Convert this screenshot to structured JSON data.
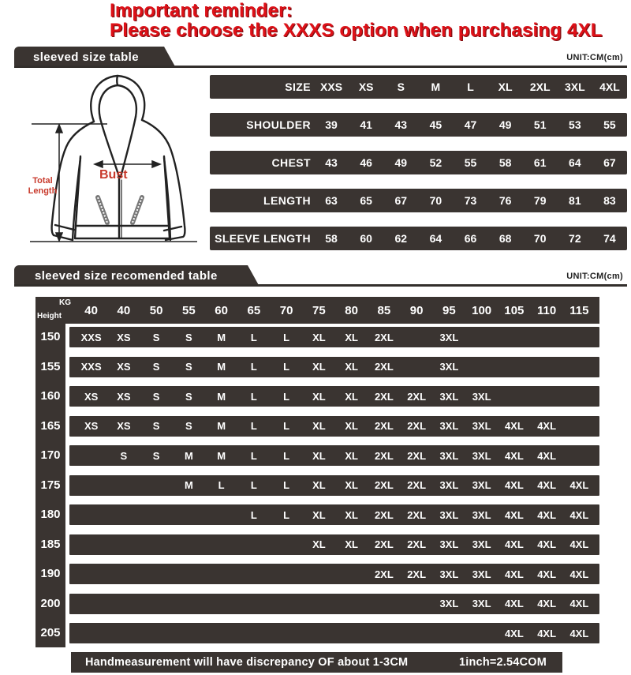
{
  "reminder": {
    "line1": "Important reminder:",
    "line2": "Please choose the XXXS option when purchasing 4XL"
  },
  "section1": {
    "banner": "sleeved size table",
    "unit": "UNIT:CM(cm)",
    "diagram": {
      "total_length": [
        "Total",
        "Length"
      ],
      "bust": "Bust"
    },
    "table": {
      "rows": [
        {
          "label": "SIZE",
          "values": [
            "XXS",
            "XS",
            "S",
            "M",
            "L",
            "XL",
            "2XL",
            "3XL",
            "4XL"
          ]
        },
        {
          "label": "SHOULDER",
          "values": [
            "39",
            "41",
            "43",
            "45",
            "47",
            "49",
            "51",
            "53",
            "55"
          ]
        },
        {
          "label": "CHEST",
          "values": [
            "43",
            "46",
            "49",
            "52",
            "55",
            "58",
            "61",
            "64",
            "67"
          ]
        },
        {
          "label": "LENGTH",
          "values": [
            "63",
            "65",
            "67",
            "70",
            "73",
            "76",
            "79",
            "81",
            "83"
          ]
        },
        {
          "label": "SLEEVE LENGTH",
          "values": [
            "58",
            "60",
            "62",
            "64",
            "66",
            "68",
            "70",
            "72",
            "74"
          ]
        }
      ]
    }
  },
  "section2": {
    "banner": "sleeved size recomended table",
    "unit": "UNIT:CM(cm)",
    "corner": {
      "top": "KG",
      "bottom": "Height"
    },
    "weights": [
      "40",
      "40",
      "50",
      "55",
      "60",
      "65",
      "70",
      "75",
      "80",
      "85",
      "90",
      "95",
      "100",
      "105",
      "110",
      "115"
    ],
    "rows": [
      {
        "height": "150",
        "sizes": [
          "XXS",
          "XS",
          "S",
          "S",
          "M",
          "L",
          "L",
          "XL",
          "XL",
          "2XL",
          "",
          "3XL",
          "",
          "",
          "",
          ""
        ]
      },
      {
        "height": "155",
        "sizes": [
          "XXS",
          "XS",
          "S",
          "S",
          "M",
          "L",
          "L",
          "XL",
          "XL",
          "2XL",
          "",
          "3XL",
          "",
          "",
          "",
          ""
        ]
      },
      {
        "height": "160",
        "sizes": [
          "XS",
          "XS",
          "S",
          "S",
          "M",
          "L",
          "L",
          "XL",
          "XL",
          "2XL",
          "2XL",
          "3XL",
          "3XL",
          "",
          "",
          ""
        ]
      },
      {
        "height": "165",
        "sizes": [
          "XS",
          "XS",
          "S",
          "S",
          "M",
          "L",
          "L",
          "XL",
          "XL",
          "2XL",
          "2XL",
          "3XL",
          "3XL",
          "4XL",
          "4XL",
          ""
        ]
      },
      {
        "height": "170",
        "sizes": [
          "",
          "S",
          "S",
          "M",
          "M",
          "L",
          "L",
          "XL",
          "XL",
          "2XL",
          "2XL",
          "3XL",
          "3XL",
          "4XL",
          "4XL",
          ""
        ]
      },
      {
        "height": "175",
        "sizes": [
          "",
          "",
          "",
          "M",
          "L",
          "L",
          "L",
          "XL",
          "XL",
          "2XL",
          "2XL",
          "3XL",
          "3XL",
          "4XL",
          "4XL",
          "4XL"
        ]
      },
      {
        "height": "180",
        "sizes": [
          "",
          "",
          "",
          "",
          "",
          "L",
          "L",
          "XL",
          "XL",
          "2XL",
          "2XL",
          "3XL",
          "3XL",
          "4XL",
          "4XL",
          "4XL"
        ]
      },
      {
        "height": "185",
        "sizes": [
          "",
          "",
          "",
          "",
          "",
          "",
          "",
          "XL",
          "XL",
          "2XL",
          "2XL",
          "3XL",
          "3XL",
          "4XL",
          "4XL",
          "4XL"
        ]
      },
      {
        "height": "190",
        "sizes": [
          "",
          "",
          "",
          "",
          "",
          "",
          "",
          "",
          "",
          "2XL",
          "2XL",
          "3XL",
          "3XL",
          "4XL",
          "4XL",
          "4XL"
        ]
      },
      {
        "height": "200",
        "sizes": [
          "",
          "",
          "",
          "",
          "",
          "",
          "",
          "",
          "",
          "",
          "",
          "3XL",
          "3XL",
          "4XL",
          "4XL",
          "4XL"
        ]
      },
      {
        "height": "205",
        "sizes": [
          "",
          "",
          "",
          "",
          "",
          "",
          "",
          "",
          "",
          "",
          "",
          "",
          "",
          "4XL",
          "4XL",
          "4XL"
        ]
      }
    ]
  },
  "footer": {
    "text1": "Handmeasurement will have discrepancy OF about 1-3CM",
    "text2": "1inch=2.54COM"
  },
  "colors": {
    "bar_dark": "#3a3431",
    "reminder_red": "#de1118",
    "diagram_red": "#c83a2c"
  }
}
